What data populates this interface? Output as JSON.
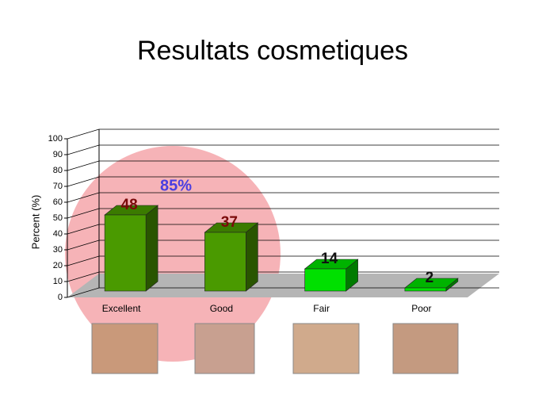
{
  "chart_data": {
    "type": "bar3d",
    "title": "Resultats cosmetiques",
    "ylabel": "Percent (%)",
    "categories": [
      "Excellent",
      "Good",
      "Fair",
      "Poor"
    ],
    "values": [
      48,
      37,
      14,
      2
    ],
    "colors": [
      "#4a9a00",
      "#4a9a00",
      "#00e000",
      "#00e000"
    ],
    "ylim": [
      0,
      100
    ],
    "yticks": [
      0,
      10,
      20,
      30,
      40,
      50,
      60,
      70,
      80,
      90,
      100
    ],
    "grid": true,
    "annotation": "85%"
  }
}
